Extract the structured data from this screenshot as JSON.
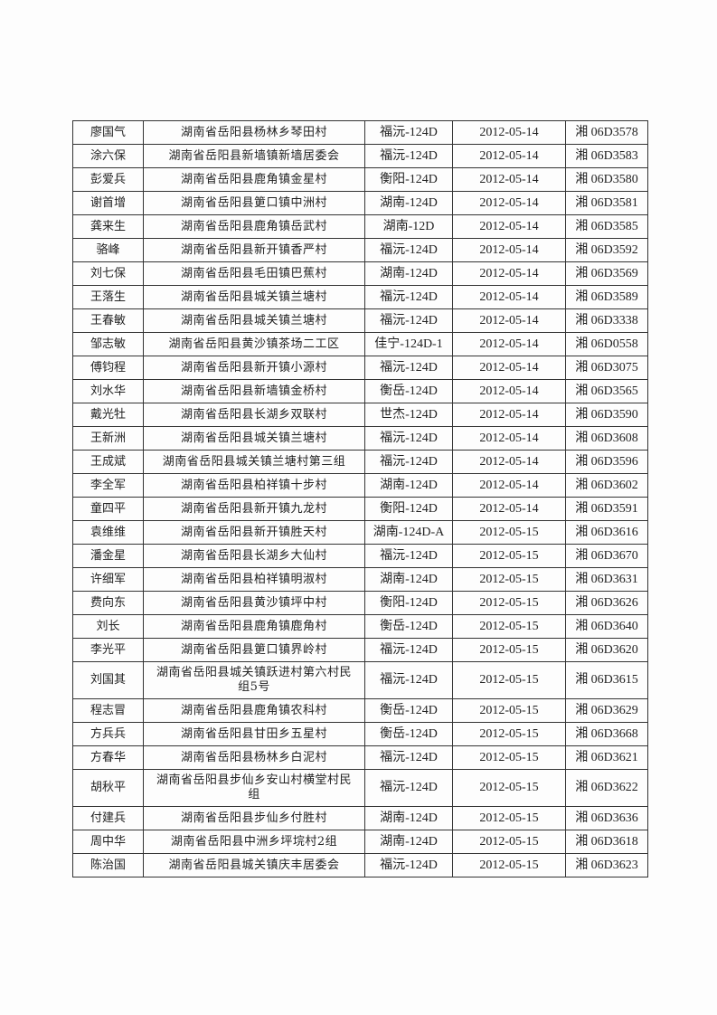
{
  "rows": [
    [
      "廖国气",
      "湖南省岳阳县杨林乡琴田村",
      "福沅-124D",
      "2012-05-14",
      "湘 06D3578"
    ],
    [
      "涂六保",
      "湖南省岳阳县新墙镇新墙居委会",
      "福沅-124D",
      "2012-05-14",
      "湘 06D3583"
    ],
    [
      "彭爱兵",
      "湖南省岳阳县鹿角镇金星村",
      "衡阳-124D",
      "2012-05-14",
      "湘 06D3580"
    ],
    [
      "谢首增",
      "湖南省岳阳县筻口镇中洲村",
      "湖南-124D",
      "2012-05-14",
      "湘 06D3581"
    ],
    [
      "龚来生",
      "湖南省岳阳县鹿角镇岳武村",
      "湖南-12D",
      "2012-05-14",
      "湘 06D3585"
    ],
    [
      "骆峰",
      "湖南省岳阳县新开镇香严村",
      "福沅-124D",
      "2012-05-14",
      "湘 06D3592"
    ],
    [
      "刘七保",
      "湖南省岳阳县毛田镇巴蕉村",
      "湖南-124D",
      "2012-05-14",
      "湘 06D3569"
    ],
    [
      "王落生",
      "湖南省岳阳县城关镇兰塘村",
      "福沅-124D",
      "2012-05-14",
      "湘 06D3589"
    ],
    [
      "王春敏",
      "湖南省岳阳县城关镇兰塘村",
      "福沅-124D",
      "2012-05-14",
      "湘 06D3338"
    ],
    [
      "邹志敏",
      "湖南省岳阳县黄沙镇茶场二工区",
      "佳宁-124D-1",
      "2012-05-14",
      "湘 06D0558"
    ],
    [
      "傅钧程",
      "湖南省岳阳县新开镇小源村",
      "福沅-124D",
      "2012-05-14",
      "湘 06D3075"
    ],
    [
      "刘水华",
      "湖南省岳阳县新墙镇金桥村",
      "衡岳-124D",
      "2012-05-14",
      "湘 06D3565"
    ],
    [
      "戴光牡",
      "湖南省岳阳县长湖乡双联村",
      "世杰-124D",
      "2012-05-14",
      "湘 06D3590"
    ],
    [
      "王新洲",
      "湖南省岳阳县城关镇兰塘村",
      "福沅-124D",
      "2012-05-14",
      "湘 06D3608"
    ],
    [
      "王成斌",
      "湖南省岳阳县城关镇兰塘村第三组",
      "福沅-124D",
      "2012-05-14",
      "湘 06D3596"
    ],
    [
      "李全军",
      "湖南省岳阳县柏祥镇十步村",
      "湖南-124D",
      "2012-05-14",
      "湘 06D3602"
    ],
    [
      "童四平",
      "湖南省岳阳县新开镇九龙村",
      "衡阳-124D",
      "2012-05-14",
      "湘 06D3591"
    ],
    [
      "袁维维",
      "湖南省岳阳县新开镇胜天村",
      "湖南-124D-A",
      "2012-05-15",
      "湘 06D3616"
    ],
    [
      "潘金星",
      "湖南省岳阳县长湖乡大仙村",
      "福沅-124D",
      "2012-05-15",
      "湘 06D3670"
    ],
    [
      "许细军",
      "湖南省岳阳县柏祥镇明淑村",
      "湖南-124D",
      "2012-05-15",
      "湘 06D3631"
    ],
    [
      "费向东",
      "湖南省岳阳县黄沙镇坪中村",
      "衡阳-124D",
      "2012-05-15",
      "湘 06D3626"
    ],
    [
      "刘长",
      "湖南省岳阳县鹿角镇鹿角村",
      "衡岳-124D",
      "2012-05-15",
      "湘 06D3640"
    ],
    [
      "李光平",
      "湖南省岳阳县筻口镇界岭村",
      "福沅-124D",
      "2012-05-15",
      "湘 06D3620"
    ],
    [
      "刘国其",
      "湖南省岳阳县城关镇跃进村第六村民组5号",
      "福沅-124D",
      "2012-05-15",
      "湘 06D3615"
    ],
    [
      "程志冒",
      "湖南省岳阳县鹿角镇农科村",
      "衡岳-124D",
      "2012-05-15",
      "湘 06D3629"
    ],
    [
      "方兵兵",
      "湖南省岳阳县甘田乡五星村",
      "衡岳-124D",
      "2012-05-15",
      "湘 06D3668"
    ],
    [
      "方春华",
      "湖南省岳阳县杨林乡白泥村",
      "福沅-124D",
      "2012-05-15",
      "湘 06D3621"
    ],
    [
      "胡秋平",
      "湖南省岳阳县步仙乡安山村横堂村民组",
      "福沅-124D",
      "2012-05-15",
      "湘 06D3622"
    ],
    [
      "付建兵",
      "湖南省岳阳县步仙乡付胜村",
      "湖南-124D",
      "2012-05-15",
      "湘 06D3636"
    ],
    [
      "周中华",
      "湖南省岳阳县中洲乡坪垸村2组",
      "湖南-124D",
      "2012-05-15",
      "湘 06D3618"
    ],
    [
      "陈治国",
      "湖南省岳阳县城关镇庆丰居委会",
      "福沅-124D",
      "2012-05-15",
      "湘 06D3623"
    ]
  ]
}
